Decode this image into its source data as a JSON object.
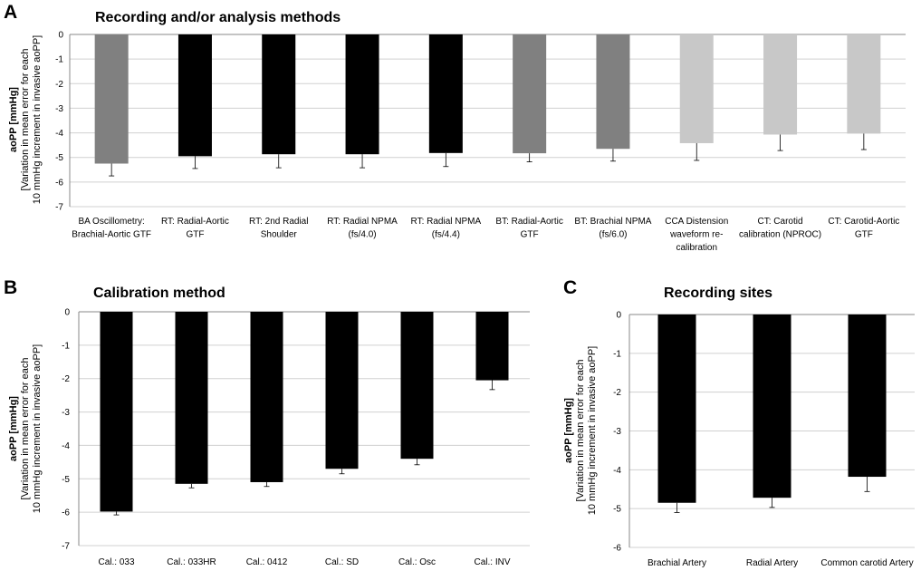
{
  "chart_data": [
    {
      "panel": "A",
      "type": "bar",
      "title": "Recording and/or analysis methods",
      "ylabel_bold": "aoPP [mmHg]",
      "ylabel_lines": [
        "[Variation in mean error for each",
        "10 mmHg increment in invasive aoPP]"
      ],
      "ylim": [
        -7,
        0
      ],
      "yticks": [
        "0",
        "-1",
        "-2",
        "-3",
        "-4",
        "-5",
        "-6",
        "-7"
      ],
      "categories": [
        [
          "BA Oscillometry:",
          "Brachial-Aortic GTF"
        ],
        [
          "RT: Radial-Aortic",
          "GTF"
        ],
        [
          "RT: 2nd Radial",
          "Shoulder"
        ],
        [
          "RT: Radial NPMA",
          "(fs/4.0)"
        ],
        [
          "RT: Radial NPMA",
          "(fs/4.4)"
        ],
        [
          "BT: Radial-Aortic",
          "GTF"
        ],
        [
          "BT: Brachial NPMA",
          "(fs/6.0)"
        ],
        [
          "CCA Distension",
          "waveform re-",
          "calibration"
        ],
        [
          "CT: Carotid",
          "calibration (NPROC)"
        ],
        [
          "CT: Carotid-Aortic",
          "GTF"
        ]
      ],
      "values": [
        -5.25,
        -4.95,
        -4.87,
        -4.87,
        -4.82,
        -4.83,
        -4.65,
        -4.42,
        -4.07,
        -4.03
      ],
      "errors": [
        0.5,
        0.5,
        0.55,
        0.55,
        0.55,
        0.35,
        0.5,
        0.7,
        0.65,
        0.65
      ],
      "colors": [
        "#808080",
        "#000000",
        "#000000",
        "#000000",
        "#000000",
        "#808080",
        "#808080",
        "#c8c8c8",
        "#c8c8c8",
        "#c8c8c8"
      ]
    },
    {
      "panel": "B",
      "type": "bar",
      "title": "Calibration method",
      "ylabel_bold": "aoPP [mmHg]",
      "ylabel_lines": [
        "[Variation in mean error for each",
        "10 mmHg increment in invasive aoPP]"
      ],
      "ylim": [
        -7,
        0
      ],
      "yticks": [
        "0",
        "-1",
        "-2",
        "-3",
        "-4",
        "-5",
        "-6",
        "-7"
      ],
      "categories": [
        [
          "Cal.: 033"
        ],
        [
          "Cal.: 033HR"
        ],
        [
          "Cal.: 0412"
        ],
        [
          "Cal.: SD"
        ],
        [
          "Cal.: Osc"
        ],
        [
          "Cal.: INV"
        ]
      ],
      "values": [
        -5.98,
        -5.15,
        -5.1,
        -4.7,
        -4.4,
        -2.05
      ],
      "errors": [
        0.1,
        0.12,
        0.13,
        0.15,
        0.18,
        0.28
      ],
      "colors": [
        "#000000",
        "#000000",
        "#000000",
        "#000000",
        "#000000",
        "#000000"
      ]
    },
    {
      "panel": "C",
      "type": "bar",
      "title": "Recording sites",
      "ylabel_bold": "aoPP [mmHg]",
      "ylabel_lines": [
        "[Variation in mean error for each",
        "10 mmHg increment in invasive aoPP]"
      ],
      "ylim": [
        -6,
        0
      ],
      "yticks": [
        "0",
        "-1",
        "-2",
        "-3",
        "-4",
        "-5",
        "-6"
      ],
      "categories": [
        [
          "Brachial Artery"
        ],
        [
          "Radial Artery"
        ],
        [
          "Common carotid Artery"
        ]
      ],
      "values": [
        -4.85,
        -4.72,
        -4.18
      ],
      "errors": [
        0.25,
        0.25,
        0.38
      ],
      "colors": [
        "#000000",
        "#000000",
        "#000000"
      ]
    }
  ]
}
